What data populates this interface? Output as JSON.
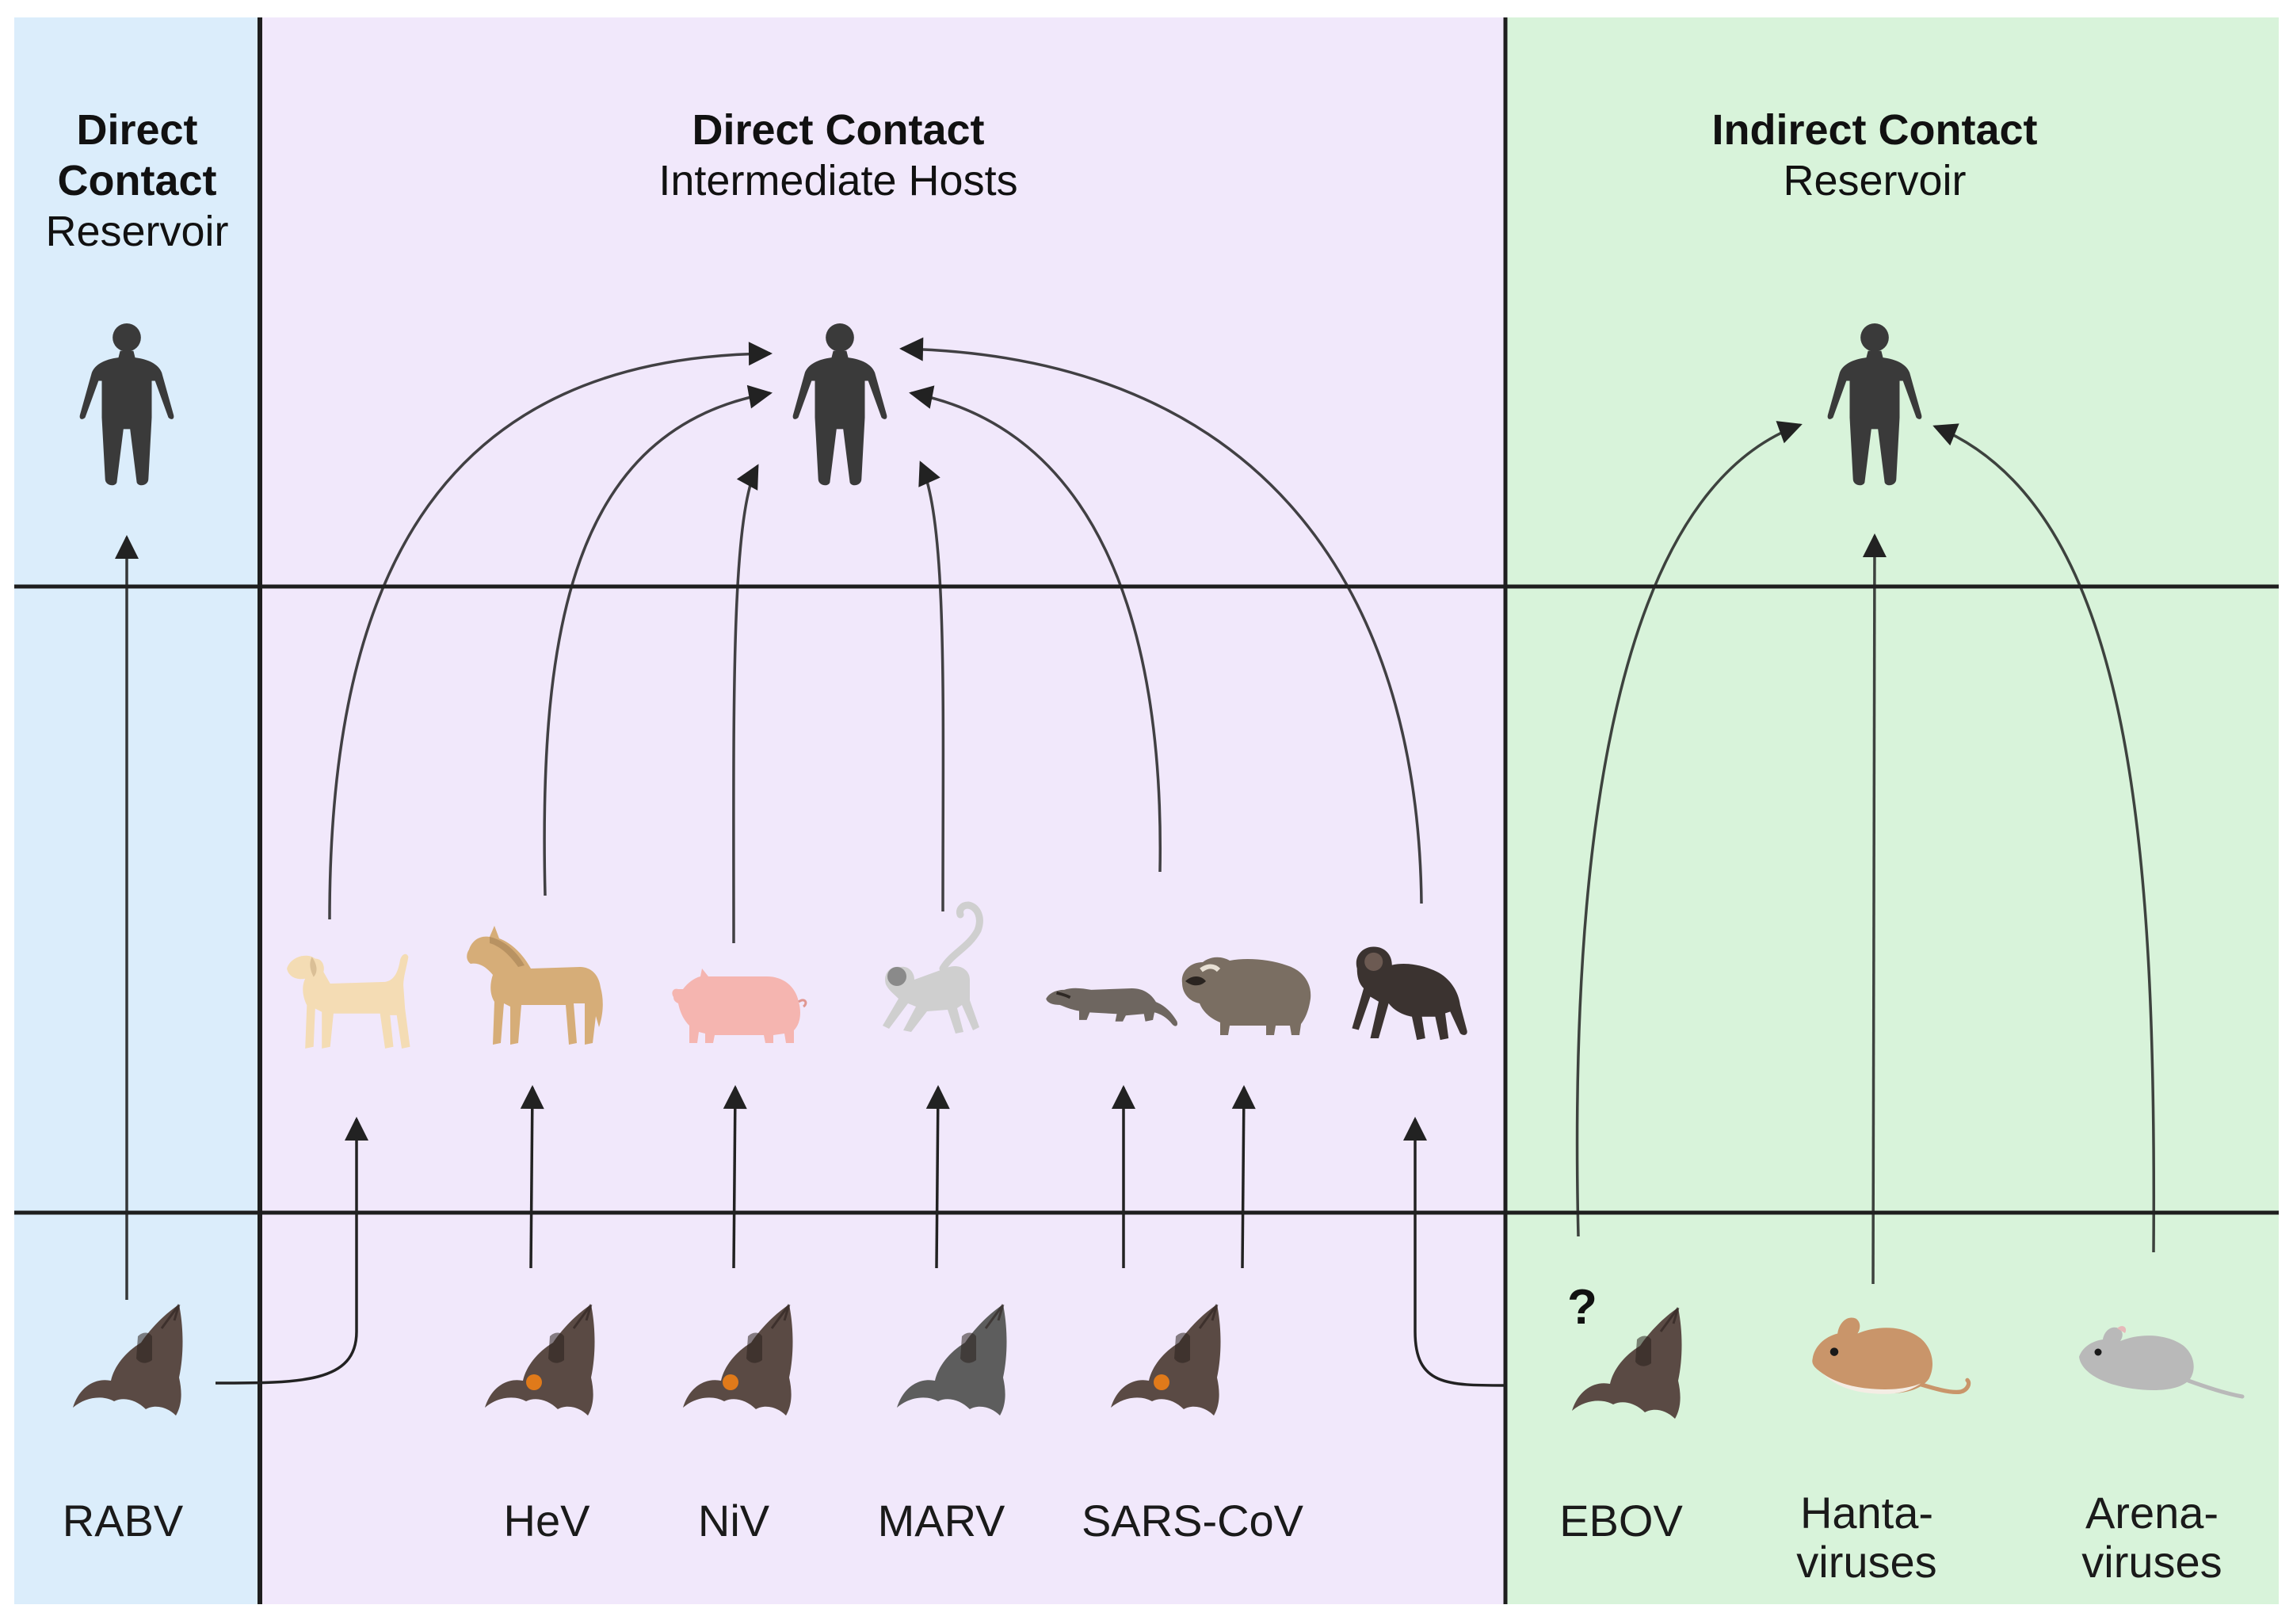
{
  "panels": {
    "left": {
      "title_line1": "Direct",
      "title_line2": "Contact",
      "subtitle": "Reservoir",
      "color": "#dbedfb"
    },
    "middle": {
      "title": "Direct Contact",
      "subtitle": "Intermediate Hosts",
      "color": "#f1e8fb"
    },
    "right": {
      "title": "Indirect Contact",
      "subtitle": "Reservoir",
      "color": "#d8f3da"
    }
  },
  "virus_labels": {
    "rabv": "RABV",
    "hev": "HeV",
    "niv": "NiV",
    "marv": "MARV",
    "sarscov": "SARS-CoV",
    "ebov": "EBOV",
    "hanta_line1": "Hanta-",
    "hanta_line2": "viruses",
    "arena_line1": "Arena-",
    "arena_line2": "viruses"
  },
  "uncertain_marker": "?",
  "icons": {
    "human": "human-figure-icon",
    "bat": "bat-icon",
    "dog": "dog-icon",
    "horse": "horse-icon",
    "pig": "pig-icon",
    "monkey": "monkey-icon",
    "civet": "civet-icon",
    "raccoon_dog": "raccoon-dog-icon",
    "chimpanzee": "chimpanzee-icon",
    "mouse": "mouse-icon",
    "rat": "rat-icon"
  },
  "colors": {
    "human": "#3a3a3a",
    "bat_brown": "#5a4a44",
    "bat_grey": "#5d5d5d",
    "bat_spot": "#e07a1a",
    "dog": "#f4dcb4",
    "horse": "#d6ad78",
    "pig": "#f5b5b0",
    "monkey": "#cfcfcf",
    "civet": "#6e6660",
    "raccoon_dog": "#7a6e62",
    "chimp": "#3b3330",
    "mouse": "#c9956a",
    "rat": "#b9b9b9",
    "lines": "#1e1e1e",
    "arrows": "#222222"
  }
}
